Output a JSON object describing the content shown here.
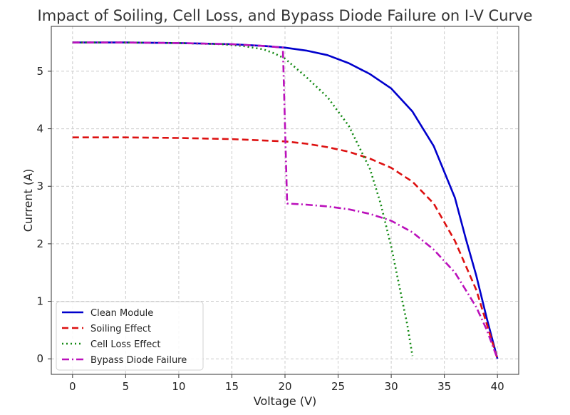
{
  "chart_data": {
    "type": "line",
    "title": "Impact of Soiling, Cell Loss, and Bypass Diode Failure on I-V Curve",
    "xlabel": "Voltage (V)",
    "ylabel": "Current (A)",
    "xlim": [
      -2,
      42
    ],
    "ylim": [
      -0.27,
      5.78
    ],
    "xticks": [
      0,
      5,
      10,
      15,
      20,
      25,
      30,
      35,
      40
    ],
    "yticks": [
      0,
      1,
      2,
      3,
      4,
      5
    ],
    "grid": true,
    "legend_position": "lower-left",
    "series": [
      {
        "name": "Clean Module",
        "color": "#0000cc",
        "style": "solid",
        "x": [
          0,
          5,
          10,
          15,
          18,
          20,
          22,
          24,
          26,
          28,
          30,
          32,
          34,
          36,
          37,
          38,
          39,
          40
        ],
        "y": [
          5.5,
          5.5,
          5.49,
          5.47,
          5.44,
          5.41,
          5.36,
          5.28,
          5.14,
          4.95,
          4.7,
          4.3,
          3.7,
          2.8,
          2.1,
          1.45,
          0.7,
          0.0
        ]
      },
      {
        "name": "Soiling Effect",
        "color": "#dd1111",
        "style": "dashed",
        "x": [
          0,
          5,
          10,
          15,
          20,
          22,
          24,
          26,
          28,
          30,
          32,
          34,
          36,
          38,
          39,
          40
        ],
        "y": [
          3.85,
          3.85,
          3.84,
          3.82,
          3.78,
          3.74,
          3.68,
          3.6,
          3.48,
          3.32,
          3.08,
          2.7,
          2.05,
          1.2,
          0.6,
          0.0
        ]
      },
      {
        "name": "Cell Loss Effect",
        "color": "#118811",
        "style": "dotted",
        "x": [
          0,
          5,
          10,
          14,
          16,
          18,
          19,
          20,
          22,
          24,
          26,
          28,
          29,
          30,
          31,
          31.5,
          32
        ],
        "y": [
          5.5,
          5.5,
          5.49,
          5.47,
          5.44,
          5.38,
          5.31,
          5.22,
          4.9,
          4.55,
          4.05,
          3.3,
          2.7,
          1.95,
          1.05,
          0.6,
          0.05
        ]
      },
      {
        "name": "Bypass Diode Failure",
        "color": "#bb11bb",
        "style": "dashdot",
        "x": [
          0,
          5,
          10,
          15,
          18,
          19.8,
          20.2,
          22,
          24,
          26,
          28,
          30,
          32,
          34,
          36,
          38,
          39,
          40
        ],
        "y": [
          5.5,
          5.5,
          5.49,
          5.47,
          5.44,
          5.41,
          2.7,
          2.68,
          2.65,
          2.6,
          2.52,
          2.4,
          2.2,
          1.9,
          1.5,
          0.9,
          0.5,
          0.0
        ]
      }
    ]
  }
}
